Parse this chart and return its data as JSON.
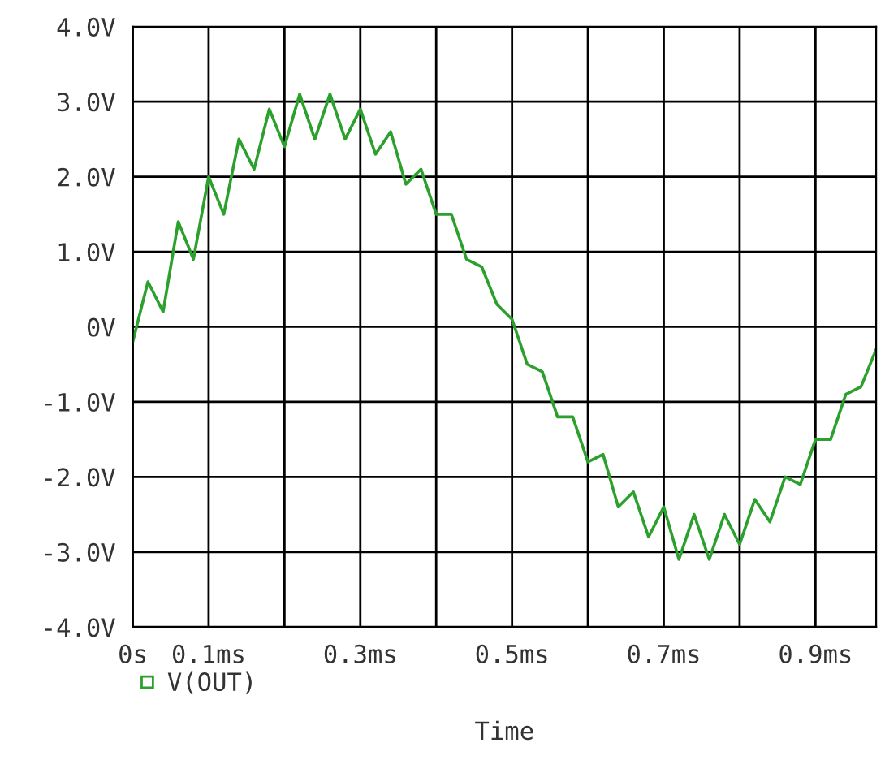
{
  "chart_data": {
    "type": "line",
    "xlabel": "Time",
    "x": [
      0,
      0.02,
      0.04,
      0.06,
      0.08,
      0.1,
      0.12,
      0.14,
      0.16,
      0.18,
      0.2,
      0.22,
      0.24,
      0.26,
      0.28,
      0.3,
      0.32,
      0.34,
      0.36,
      0.38,
      0.4,
      0.42,
      0.44,
      0.46,
      0.48,
      0.5,
      0.52,
      0.54,
      0.56,
      0.58,
      0.6,
      0.62,
      0.64,
      0.66,
      0.68,
      0.7,
      0.72,
      0.74,
      0.76,
      0.78,
      0.8,
      0.82,
      0.84,
      0.86,
      0.88,
      0.9,
      0.92,
      0.94,
      0.96,
      0.98
    ],
    "series": [
      {
        "name": "V(OUT)",
        "color": "#2ca02c",
        "values": [
          -0.2,
          0.6,
          0.2,
          1.4,
          0.9,
          2.0,
          1.5,
          2.5,
          2.1,
          2.9,
          2.4,
          3.1,
          2.5,
          3.1,
          2.5,
          2.9,
          2.3,
          2.6,
          1.9,
          2.1,
          1.5,
          1.5,
          0.9,
          0.8,
          0.3,
          0.1,
          -0.5,
          -0.6,
          -1.2,
          -1.2,
          -1.8,
          -1.7,
          -2.4,
          -2.2,
          -2.8,
          -2.4,
          -3.1,
          -2.5,
          -3.1,
          -2.5,
          -2.9,
          -2.3,
          -2.6,
          -2.0,
          -2.1,
          -1.5,
          -1.5,
          -0.9,
          -0.8,
          -0.3
        ]
      }
    ],
    "xlim": [
      0,
      0.98
    ],
    "xticks": [
      {
        "value": 0,
        "label": "0s"
      },
      {
        "value": 0.1,
        "label": "0.1ms"
      },
      {
        "value": 0.2,
        "label": null
      },
      {
        "value": 0.3,
        "label": "0.3ms"
      },
      {
        "value": 0.4,
        "label": null
      },
      {
        "value": 0.5,
        "label": "0.5ms"
      },
      {
        "value": 0.6,
        "label": null
      },
      {
        "value": 0.7,
        "label": "0.7ms"
      },
      {
        "value": 0.8,
        "label": null
      },
      {
        "value": 0.9,
        "label": "0.9ms"
      }
    ],
    "ylim": [
      -4,
      4
    ],
    "yticks": [
      {
        "value": -4,
        "label": "-4.0V"
      },
      {
        "value": -3,
        "label": "-3.0V"
      },
      {
        "value": -2,
        "label": "-2.0V"
      },
      {
        "value": -1,
        "label": "-1.0V"
      },
      {
        "value": 0,
        "label": "0V"
      },
      {
        "value": 1,
        "label": "1.0V"
      },
      {
        "value": 2,
        "label": "2.0V"
      },
      {
        "value": 3,
        "label": "3.0V"
      },
      {
        "value": 4,
        "label": "4.0V"
      }
    ],
    "grid": true,
    "legend": "bottom left"
  }
}
